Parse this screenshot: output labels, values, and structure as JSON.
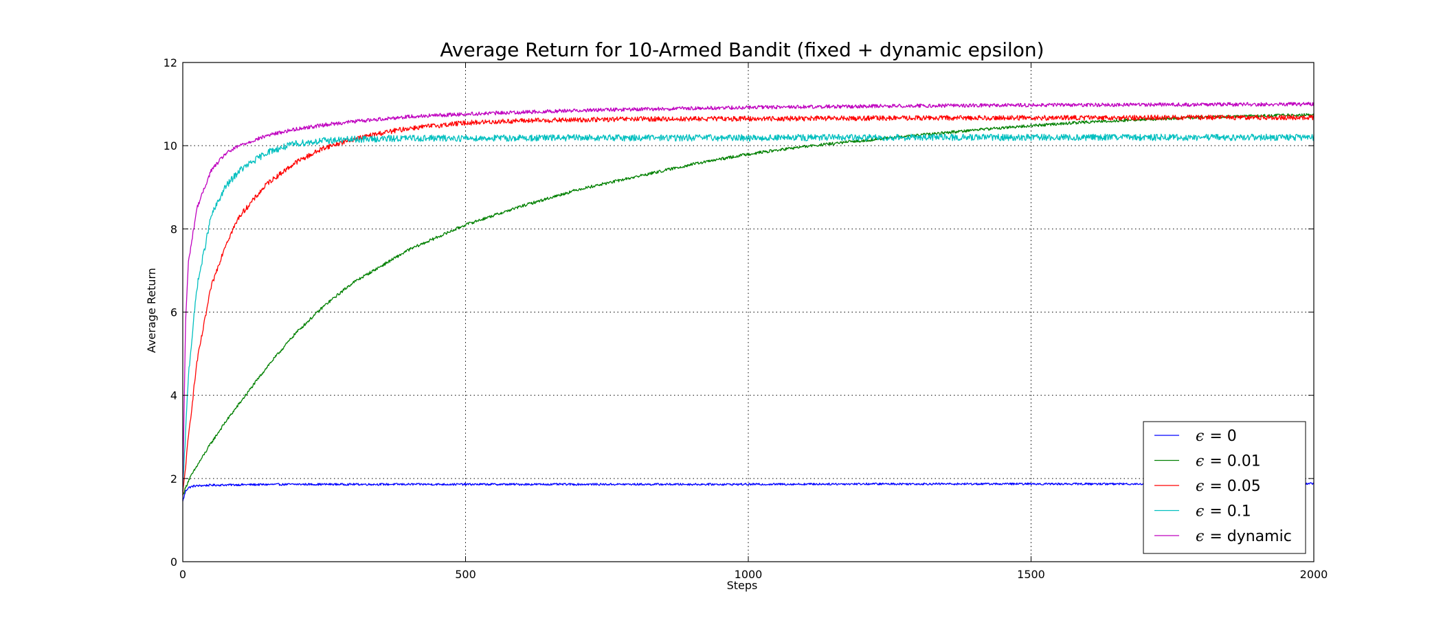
{
  "chart_data": {
    "type": "line",
    "title": "Average Return for 10-Armed Bandit (fixed + dynamic epsilon)",
    "xlabel": "Steps",
    "ylabel": "Average Return",
    "xlim": [
      0,
      2000
    ],
    "ylim": [
      0,
      12
    ],
    "xticks": [
      0,
      500,
      1000,
      1500,
      2000
    ],
    "yticks": [
      0,
      2,
      4,
      6,
      8,
      10,
      12
    ],
    "grid": true,
    "legend_position": "bottom-right",
    "legend_symbol": "ϵ",
    "series": [
      {
        "name": "ϵ = 0",
        "label_value": "= 0",
        "color": "#0000ff",
        "x": [
          0,
          5,
          10,
          20,
          50,
          100,
          200,
          400,
          600,
          800,
          1000,
          1200,
          1400,
          1600,
          1800,
          2000
        ],
        "values": [
          1.45,
          1.7,
          1.78,
          1.82,
          1.84,
          1.85,
          1.86,
          1.86,
          1.86,
          1.86,
          1.86,
          1.87,
          1.87,
          1.87,
          1.87,
          1.88
        ]
      },
      {
        "name": "ϵ = 0.01",
        "label_value": "= 0.01",
        "color": "#008000",
        "x": [
          0,
          10,
          25,
          50,
          75,
          100,
          150,
          200,
          250,
          300,
          400,
          500,
          600,
          700,
          800,
          900,
          1000,
          1100,
          1200,
          1300,
          1400,
          1500,
          1600,
          1700,
          1800,
          1900,
          2000
        ],
        "values": [
          1.6,
          1.95,
          2.3,
          2.85,
          3.35,
          3.8,
          4.7,
          5.5,
          6.15,
          6.7,
          7.5,
          8.1,
          8.55,
          8.95,
          9.25,
          9.55,
          9.8,
          9.98,
          10.12,
          10.25,
          10.38,
          10.48,
          10.57,
          10.63,
          10.68,
          10.72,
          10.74
        ]
      },
      {
        "name": "ϵ = 0.05",
        "label_value": "= 0.05",
        "color": "#ff0000",
        "x": [
          0,
          10,
          25,
          50,
          75,
          100,
          150,
          200,
          250,
          300,
          350,
          400,
          500,
          600,
          700,
          800,
          1000,
          1200,
          1400,
          1600,
          1800,
          2000
        ],
        "values": [
          1.6,
          3.0,
          4.8,
          6.6,
          7.6,
          8.3,
          9.1,
          9.6,
          9.95,
          10.15,
          10.3,
          10.42,
          10.55,
          10.6,
          10.62,
          10.64,
          10.65,
          10.66,
          10.67,
          10.67,
          10.68,
          10.68
        ]
      },
      {
        "name": "ϵ = 0.1",
        "label_value": "= 0.1",
        "color": "#00bfbf",
        "x": [
          0,
          10,
          25,
          50,
          75,
          100,
          150,
          200,
          250,
          300,
          400,
          500,
          700,
          1000,
          1300,
          1600,
          2000
        ],
        "values": [
          1.7,
          4.5,
          6.6,
          8.3,
          9.0,
          9.4,
          9.85,
          10.05,
          10.12,
          10.15,
          10.18,
          10.18,
          10.19,
          10.19,
          10.2,
          10.2,
          10.2
        ]
      },
      {
        "name": "ϵ = dynamic",
        "label_value": "= dynamic",
        "color": "#bf00bf",
        "x": [
          0,
          5,
          10,
          25,
          50,
          75,
          100,
          150,
          200,
          250,
          300,
          400,
          500,
          700,
          1000,
          1300,
          1600,
          2000
        ],
        "values": [
          1.8,
          5.8,
          7.2,
          8.5,
          9.4,
          9.8,
          10.0,
          10.25,
          10.4,
          10.5,
          10.58,
          10.7,
          10.76,
          10.85,
          10.92,
          10.96,
          10.98,
          11.0
        ]
      }
    ]
  }
}
